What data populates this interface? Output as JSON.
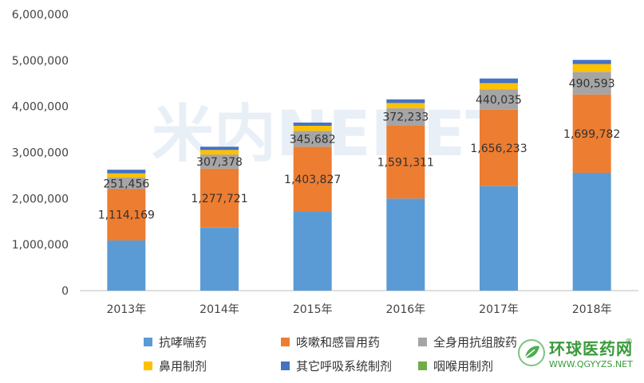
{
  "chart_data": {
    "type": "bar",
    "stacked": true,
    "categories": [
      "2013年",
      "2014年",
      "2015年",
      "2016年",
      "2017年",
      "2018年"
    ],
    "ylim": [
      0,
      6000000
    ],
    "yticks": [
      "0",
      "1,000,000",
      "2,000,000",
      "3,000,000",
      "4,000,000",
      "5,000,000",
      "6,000,000"
    ],
    "ytick_values": [
      0,
      1000000,
      2000000,
      3000000,
      4000000,
      5000000,
      6000000
    ],
    "series": [
      {
        "name": "抗哮喘药",
        "color": "#5b9bd5",
        "values": [
          1090000,
          1370000,
          1720000,
          2000000,
          2270000,
          2560000
        ]
      },
      {
        "name": "咳嗽和感冒用药",
        "color": "#ed7d31",
        "values": [
          1114169,
          1277721,
          1403827,
          1591311,
          1656233,
          1699782
        ],
        "labels": [
          "1,114,169",
          "1,277,721",
          "1,403,827",
          "1,591,311",
          "1,656,233",
          "1,699,782"
        ]
      },
      {
        "name": "全身用抗组胺药",
        "color": "#a5a5a5",
        "values": [
          251456,
          307378,
          345682,
          372233,
          440035,
          490593
        ],
        "labels": [
          "251,456",
          "307,378",
          "345,682",
          "372,233",
          "440,035",
          "490,593"
        ]
      },
      {
        "name": "鼻用制剂",
        "color": "#ffc000",
        "values": [
          90000,
          100000,
          110000,
          110000,
          140000,
          170000
        ]
      },
      {
        "name": "其它呼吸系统制剂",
        "color": "#4472c4",
        "values": [
          80000,
          70000,
          70000,
          80000,
          100000,
          90000
        ]
      },
      {
        "name": "咽喉用制剂",
        "color": "#70ad47",
        "values": [
          0,
          0,
          0,
          0,
          0,
          0
        ]
      }
    ],
    "grid": false,
    "legend": "bottom"
  },
  "watermark": {
    "center_text": "米内NENET",
    "brand": "环球医药网",
    "url": "WWW.QGYYZS.NET",
    "reg": "®"
  }
}
